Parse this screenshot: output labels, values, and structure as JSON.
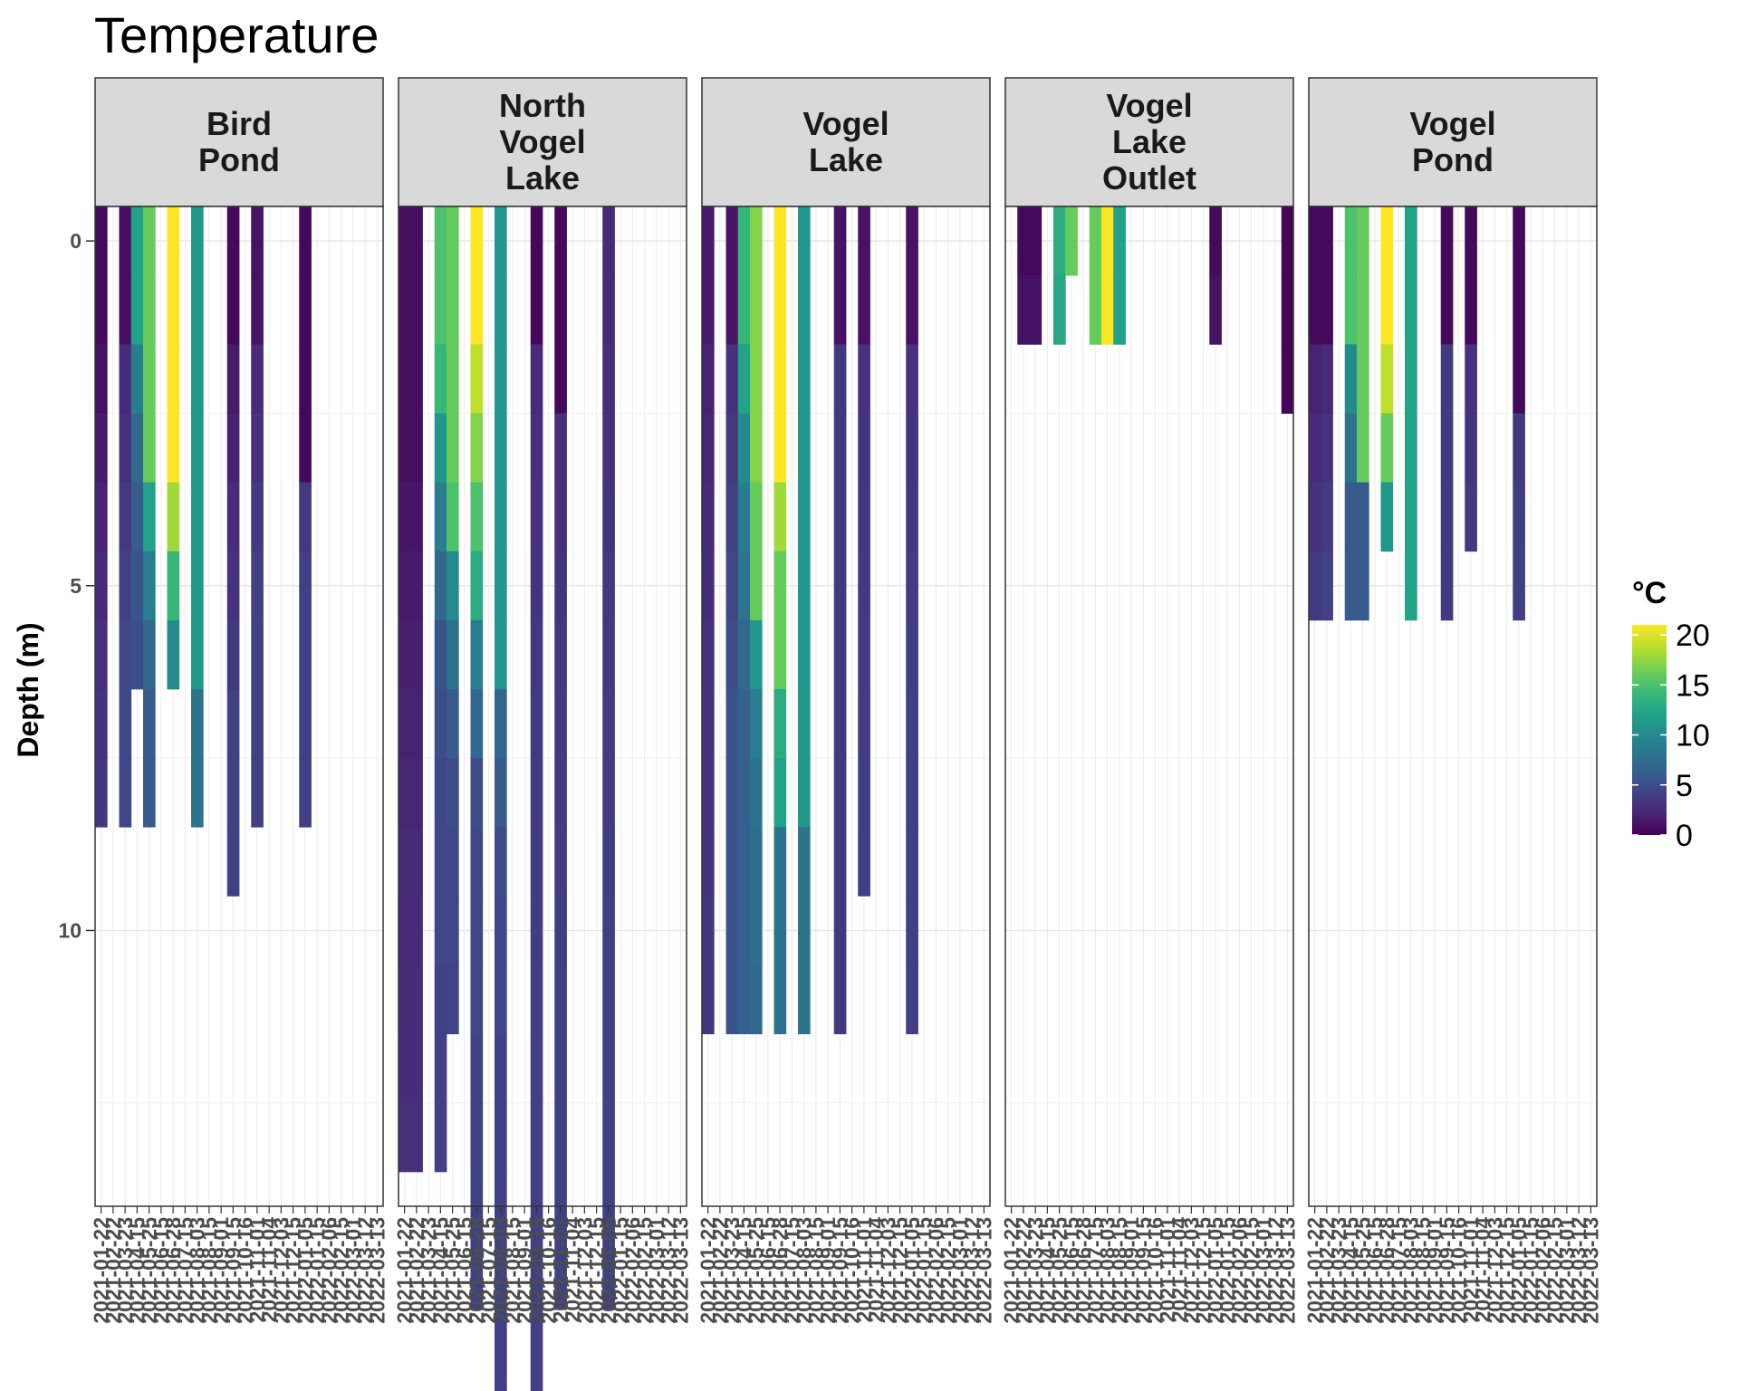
{
  "chart_data": {
    "type": "heatmap",
    "title": "Temperature",
    "ylabel": "Depth (m)",
    "xlabel": "",
    "y_reversed": true,
    "ylim": [
      -0.5,
      14.0
    ],
    "y_ticks": [
      0,
      5,
      10
    ],
    "grid": "on",
    "dates": [
      "2021-01-22",
      "2021-02-22",
      "2021-03-23",
      "2021-04-15",
      "2021-05-25",
      "2021-06-15",
      "2021-06-28",
      "2021-07-15",
      "2021-08-03",
      "2021-08-15",
      "2021-09-01",
      "2021-09-15",
      "2021-10-16",
      "2021-11-01",
      "2021-11-04",
      "2021-12-03",
      "2021-12-15",
      "2022-01-05",
      "2022-01-15",
      "2022-02-06",
      "2022-02-15",
      "2022-03-01",
      "2022-03-12",
      "2022-03-13"
    ],
    "dates_shown": [
      "2021-01-22",
      "2021-02-22",
      "2021-03-23",
      "2021-04-15",
      "2021-05-25",
      "2021-06-15",
      "2021-06-28",
      "2021-07-15",
      "2021-08-03",
      "2021-08-15",
      "2021-09-01",
      "2021-09-15",
      "2021-10-16",
      "2021-11-01",
      "2021-11-04",
      "2021-12-03",
      "2021-12-15",
      "2022-01-05",
      "2022-01-15",
      "2022-02-06",
      "2022-02-15",
      "2022-03-01",
      "2022-03-12",
      "2022-03-13"
    ],
    "legend": {
      "title": "°C",
      "position": "right",
      "ticks": [
        0,
        5,
        10,
        15,
        20
      ],
      "range": [
        0,
        21
      ],
      "palette": "viridis"
    },
    "facets": [
      {
        "name": "Bird\nPond",
        "columns": [
          {
            "date": "2021-01-22",
            "temps": [
              0.5,
              0.5,
              1.0,
              1.5,
              2.0,
              2.5,
              3.0,
              3.2,
              3.4
            ]
          },
          {
            "date": "2021-03-23",
            "temps": [
              0.8,
              0.8,
              2.5,
              3.0,
              3.5,
              4.0,
              4.5,
              4.5,
              4.5
            ]
          },
          {
            "date": "2021-04-15",
            "temps": [
              12,
              12,
              9,
              7,
              6,
              5.5,
              5.0
            ]
          },
          {
            "date": "2021-05-25",
            "temps": [
              16,
              16,
              16,
              16,
              12,
              9,
              7,
              6,
              6
            ]
          },
          {
            "date": "2021-06-28",
            "temps": [
              21,
              21,
              21,
              21,
              18,
              14,
              10
            ]
          },
          {
            "date": "2021-08-03",
            "temps": [
              11,
              11,
              11,
              11,
              11,
              11,
              11,
              8,
              8
            ]
          },
          {
            "date": "2021-09-15",
            "temps": [
              0.5,
              0.5,
              1.5,
              2.0,
              2.5,
              3.0,
              3.5,
              4.0,
              4.0,
              4.0
            ]
          },
          {
            "date": "2021-11-01",
            "temps": [
              1.0,
              1.0,
              2.5,
              3.0,
              3.5,
              4.0,
              4.0,
              4.0,
              4.0
            ]
          },
          {
            "date": "2022-01-05",
            "temps": [
              0.5,
              0.5,
              0.5,
              0.5,
              3.5,
              4.0,
              4.0,
              4.0,
              4.0
            ]
          }
        ]
      },
      {
        "name": "North\nVogel\nLake",
        "columns": [
          {
            "date": "2021-01-22",
            "temps": [
              0.8,
              0.8,
              0.8,
              0.8,
              1.2,
              1.5,
              1.8,
              2.0,
              2.2,
              2.4,
              2.5,
              2.6,
              2.7,
              2.8
            ]
          },
          {
            "date": "2021-02-22",
            "temps": [
              0.8,
              0.8,
              0.8,
              0.8,
              1.2,
              1.5,
              1.8,
              2.0,
              2.2,
              2.4,
              2.5,
              2.6,
              2.7,
              2.8
            ]
          },
          {
            "date": "2021-04-15",
            "temps": [
              15,
              15,
              14,
              11,
              9,
              7,
              5.5,
              5,
              4.5,
              4.5,
              4.5,
              4.2,
              4.0,
              4.0
            ]
          },
          {
            "date": "2021-05-25",
            "temps": [
              16,
              16,
              16,
              16,
              15,
              10,
              8,
              6,
              5,
              4.5,
              4.5,
              4.3
            ]
          },
          {
            "date": "2021-06-28",
            "temps": [
              21,
              21,
              19,
              17,
              15,
              13,
              9,
              7,
              5,
              4.5,
              4.5,
              4.5,
              4.2,
              4.2,
              4.0,
              4.0
            ]
          },
          {
            "date": "2021-08-03",
            "temps": [
              11,
              11,
              11,
              11,
              11,
              11,
              11,
              7,
              6,
              5,
              4.5,
              4.5,
              4.2,
              4.2,
              4.0,
              4.0,
              4.0,
              4.0
            ]
          },
          {
            "date": "2021-09-15",
            "temps": [
              0.5,
              0.5,
              2.5,
              2.8,
              3.0,
              3.2,
              3.4,
              3.5,
              3.6,
              3.7,
              3.8,
              3.9,
              4.0,
              4.0,
              4.0,
              4.0,
              4.0,
              4.0
            ]
          },
          {
            "date": "2021-11-01",
            "temps": [
              0.5,
              0.5,
              0.5,
              2.8,
              3.0,
              3.2,
              3.4,
              3.5,
              3.6,
              3.7,
              3.8,
              3.9,
              4.0,
              4.0,
              4.0,
              4.0
            ]
          },
          {
            "date": "2022-01-05",
            "temps": [
              2.5,
              2.5,
              2.8,
              3.0,
              3.2,
              3.4,
              3.5,
              3.6,
              3.7,
              3.8,
              3.9,
              4.0,
              4.0,
              4.0,
              4.0,
              4.0
            ]
          }
        ]
      },
      {
        "name": "Vogel\nLake",
        "columns": [
          {
            "date": "2021-01-22",
            "temps": [
              1.5,
              1.5,
              2.0,
              2.2,
              2.5,
              2.7,
              2.9,
              3.0,
              3.1,
              3.2,
              3.3,
              3.4
            ]
          },
          {
            "date": "2021-03-23",
            "temps": [
              1.2,
              1.2,
              3.0,
              3.5,
              4.0,
              4.5,
              5.0,
              5.5,
              5.5,
              5.5,
              5.5,
              5.5
            ]
          },
          {
            "date": "2021-04-15",
            "temps": [
              14,
              14,
              12,
              10,
              9,
              8,
              7,
              6.5,
              6.5,
              6.5,
              6.5,
              6.5
            ]
          },
          {
            "date": "2021-05-25",
            "temps": [
              17,
              17,
              17,
              17,
              16,
              16,
              11,
              9,
              8,
              7.5,
              7.5,
              7.0
            ]
          },
          {
            "date": "2021-06-28",
            "temps": [
              21,
              21,
              21,
              21,
              18,
              16,
              16,
              13,
              12,
              8,
              8,
              8
            ]
          },
          {
            "date": "2021-08-03",
            "temps": [
              11,
              11,
              11,
              11,
              11,
              11,
              11,
              11,
              11,
              8,
              8,
              8
            ]
          },
          {
            "date": "2021-09-15",
            "temps": [
              1.0,
              1.0,
              3.5,
              3.5,
              3.5,
              3.5,
              3.5,
              3.5,
              3.5,
              3.5,
              3.5,
              3.5
            ]
          },
          {
            "date": "2021-11-01",
            "temps": [
              1.0,
              1.0,
              3.0,
              3.2,
              3.4,
              3.5,
              3.6,
              3.7,
              3.8,
              3.9
            ]
          },
          {
            "date": "2022-01-05",
            "temps": [
              1.0,
              1.0,
              3.0,
              3.2,
              3.4,
              3.6,
              3.8,
              4.0,
              4.0,
              4.0,
              4.0,
              4.0
            ]
          }
        ]
      },
      {
        "name": "Vogel\nLake\nOutlet",
        "columns": [
          {
            "date": "2021-02-22",
            "temps": [
              0.5,
              1.0
            ]
          },
          {
            "date": "2021-03-23",
            "temps": [
              0.5,
              1.0
            ]
          },
          {
            "date": "2021-05-25",
            "temps": [
              13,
              12.5
            ]
          },
          {
            "date": "2021-06-15",
            "temps": [
              16
            ]
          },
          {
            "date": "2021-07-15",
            "temps": [
              16,
              16
            ]
          },
          {
            "date": "2021-08-03",
            "temps": [
              21,
              21
            ]
          },
          {
            "date": "2021-08-15",
            "temps": [
              12,
              12
            ]
          },
          {
            "date": "2022-01-05",
            "temps": [
              0.5,
              1.0
            ]
          },
          {
            "date": "2022-03-13",
            "temps": [
              0.2,
              0.2,
              0.2
            ]
          }
        ]
      },
      {
        "name": "Vogel\nPond",
        "columns": [
          {
            "date": "2021-01-22",
            "temps": [
              0.5,
              0.5,
              2.0,
              2.5,
              3.0,
              3.5
            ]
          },
          {
            "date": "2021-02-22",
            "temps": [
              0.5,
              0.5,
              2.5,
              3.0,
              3.5,
              4.0
            ]
          },
          {
            "date": "2021-04-15",
            "temps": [
              15,
              15,
              10,
              8,
              6,
              6
            ]
          },
          {
            "date": "2021-05-25",
            "temps": [
              16,
              16,
              16,
              16,
              6,
              6
            ]
          },
          {
            "date": "2021-06-28",
            "temps": [
              21,
              21,
              19,
              16,
              11
            ]
          },
          {
            "date": "2021-08-03",
            "temps": [
              12,
              12,
              12,
              12,
              12,
              12
            ]
          },
          {
            "date": "2021-09-15",
            "temps": [
              0.5,
              0.5,
              3.5,
              3.5,
              3.5,
              3.5
            ]
          },
          {
            "date": "2021-11-01",
            "temps": [
              0.5,
              0.5,
              3.0,
              3.2,
              3.5
            ]
          },
          {
            "date": "2022-01-05",
            "temps": [
              0.5,
              0.5,
              0.5,
              3.5,
              3.8,
              4.0
            ]
          }
        ]
      }
    ]
  }
}
